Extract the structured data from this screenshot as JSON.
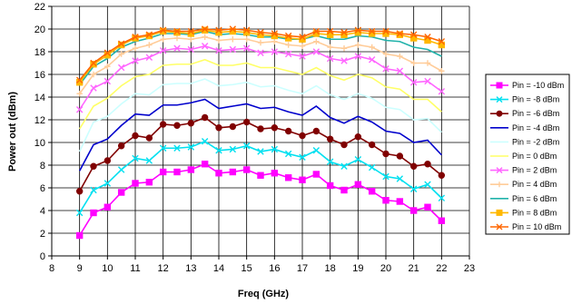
{
  "chart_data": {
    "type": "line",
    "title": "",
    "xlabel": "Freq (GHz)",
    "ylabel": "Power out (dBm)",
    "xlim": [
      8,
      23
    ],
    "ylim": [
      0,
      22
    ],
    "x_ticks": [
      8,
      9,
      10,
      11,
      12,
      13,
      14,
      15,
      16,
      17,
      18,
      19,
      20,
      21,
      22,
      23
    ],
    "y_ticks": [
      0,
      2,
      4,
      6,
      8,
      10,
      12,
      14,
      16,
      18,
      20,
      22
    ],
    "grid": {
      "x": true,
      "y": true
    },
    "legend_position": "right",
    "x": [
      9,
      9.5,
      10,
      10.5,
      11,
      11.5,
      12,
      12.5,
      13,
      13.5,
      14,
      14.5,
      15,
      15.5,
      16,
      16.5,
      17,
      17.5,
      18,
      18.5,
      19,
      19.5,
      20,
      20.5,
      21,
      21.5,
      22
    ],
    "series": [
      {
        "name": "Pin = -10 dBm",
        "color": "#ff00ff",
        "marker": "square",
        "values": [
          1.8,
          3.8,
          4.3,
          5.6,
          6.4,
          6.5,
          7.4,
          7.4,
          7.6,
          8.1,
          7.3,
          7.4,
          7.6,
          7.1,
          7.3,
          6.9,
          6.7,
          7.2,
          6.2,
          5.8,
          6.3,
          5.7,
          4.9,
          4.8,
          4.0,
          4.3,
          3.1
        ]
      },
      {
        "name": "Pin = -8 dBm",
        "color": "#00e0f0",
        "marker": "x",
        "values": [
          3.8,
          5.8,
          6.4,
          7.6,
          8.6,
          8.4,
          9.5,
          9.5,
          9.6,
          10.1,
          9.3,
          9.4,
          9.7,
          9.2,
          9.4,
          9.0,
          8.7,
          9.3,
          8.3,
          7.9,
          8.5,
          7.8,
          7.0,
          6.8,
          5.9,
          6.3,
          5.1
        ]
      },
      {
        "name": "Pin = -6 dBm",
        "color": "#800000",
        "marker": "circle",
        "values": [
          5.7,
          7.9,
          8.4,
          9.7,
          10.6,
          10.4,
          11.6,
          11.5,
          11.7,
          12.2,
          11.3,
          11.4,
          11.8,
          11.2,
          11.3,
          11.0,
          10.6,
          11.0,
          10.3,
          9.8,
          10.5,
          9.8,
          9.0,
          8.8,
          7.9,
          8.1,
          7.1
        ]
      },
      {
        "name": "Pin = -4 dBm",
        "color": "#0000cc",
        "marker": "none",
        "values": [
          7.5,
          9.8,
          10.3,
          11.5,
          12.5,
          12.4,
          13.3,
          13.3,
          13.5,
          13.8,
          13.0,
          13.2,
          13.4,
          13.0,
          13.1,
          12.7,
          12.4,
          13.2,
          12.2,
          11.7,
          12.3,
          11.8,
          11.0,
          10.8,
          10.0,
          10.2,
          8.9
        ]
      },
      {
        "name": "Pin = -2 dBm",
        "color": "#ccffff",
        "marker": "none",
        "values": [
          9.2,
          11.8,
          12.3,
          13.4,
          14.3,
          14.2,
          15.1,
          15.2,
          15.2,
          15.6,
          15.0,
          15.1,
          15.3,
          14.9,
          15.0,
          14.6,
          14.3,
          15.0,
          14.2,
          13.8,
          14.3,
          13.9,
          13.1,
          12.9,
          12.0,
          12.1,
          10.9
        ]
      },
      {
        "name": "Pin = 0 dBm",
        "color": "#ffff66",
        "marker": "none",
        "values": [
          11.2,
          13.2,
          13.9,
          15.0,
          15.8,
          16.0,
          16.8,
          16.9,
          16.9,
          17.3,
          16.8,
          16.8,
          17.0,
          16.6,
          16.6,
          16.3,
          16.0,
          16.6,
          15.9,
          15.5,
          16.0,
          15.7,
          14.9,
          14.7,
          13.8,
          13.8,
          12.7
        ]
      },
      {
        "name": "Pin = 2 dBm",
        "color": "#ff66ff",
        "marker": "x",
        "values": [
          12.9,
          14.8,
          15.4,
          16.6,
          17.2,
          17.5,
          18.1,
          18.3,
          18.2,
          18.5,
          18.1,
          18.2,
          18.3,
          17.9,
          18.0,
          17.8,
          17.6,
          18.0,
          17.4,
          17.2,
          17.6,
          17.3,
          16.5,
          16.3,
          15.3,
          15.4,
          14.5
        ]
      },
      {
        "name": "Pin = 4 dBm",
        "color": "#ffcc99",
        "marker": "plus",
        "values": [
          14.3,
          16.0,
          16.7,
          17.8,
          18.3,
          18.6,
          19.1,
          19.2,
          19.1,
          19.3,
          19.0,
          19.1,
          19.1,
          18.8,
          18.9,
          18.6,
          18.5,
          18.9,
          18.4,
          18.3,
          18.6,
          18.4,
          17.8,
          17.6,
          17.0,
          17.0,
          16.3
        ]
      },
      {
        "name": "Pin = 6 dBm",
        "color": "#20b2aa",
        "marker": "none",
        "values": [
          15.1,
          16.7,
          17.4,
          18.4,
          18.9,
          19.2,
          19.6,
          19.6,
          19.5,
          19.8,
          19.5,
          19.6,
          19.5,
          19.3,
          19.3,
          19.1,
          19.1,
          19.4,
          19.1,
          19.1,
          19.4,
          19.3,
          19.0,
          18.9,
          18.4,
          18.2,
          17.6
        ]
      },
      {
        "name": "Pin = 8 dBm",
        "color": "#ffb800",
        "marker": "square",
        "values": [
          15.3,
          16.9,
          17.7,
          18.6,
          19.2,
          19.4,
          19.8,
          19.7,
          19.6,
          19.9,
          19.7,
          19.8,
          19.7,
          19.5,
          19.4,
          19.2,
          19.1,
          19.6,
          19.5,
          19.5,
          19.7,
          19.6,
          19.6,
          19.5,
          19.2,
          19.0,
          18.6
        ]
      },
      {
        "name": "Pin = 10 dBm",
        "color": "#ff6600",
        "marker": "x",
        "values": [
          15.5,
          17.0,
          17.9,
          18.7,
          19.3,
          19.5,
          19.9,
          19.8,
          19.8,
          20.0,
          19.9,
          20.0,
          19.9,
          19.7,
          19.6,
          19.4,
          19.3,
          19.8,
          19.8,
          19.7,
          19.9,
          19.8,
          19.8,
          19.6,
          19.5,
          19.3,
          18.9
        ]
      }
    ]
  }
}
